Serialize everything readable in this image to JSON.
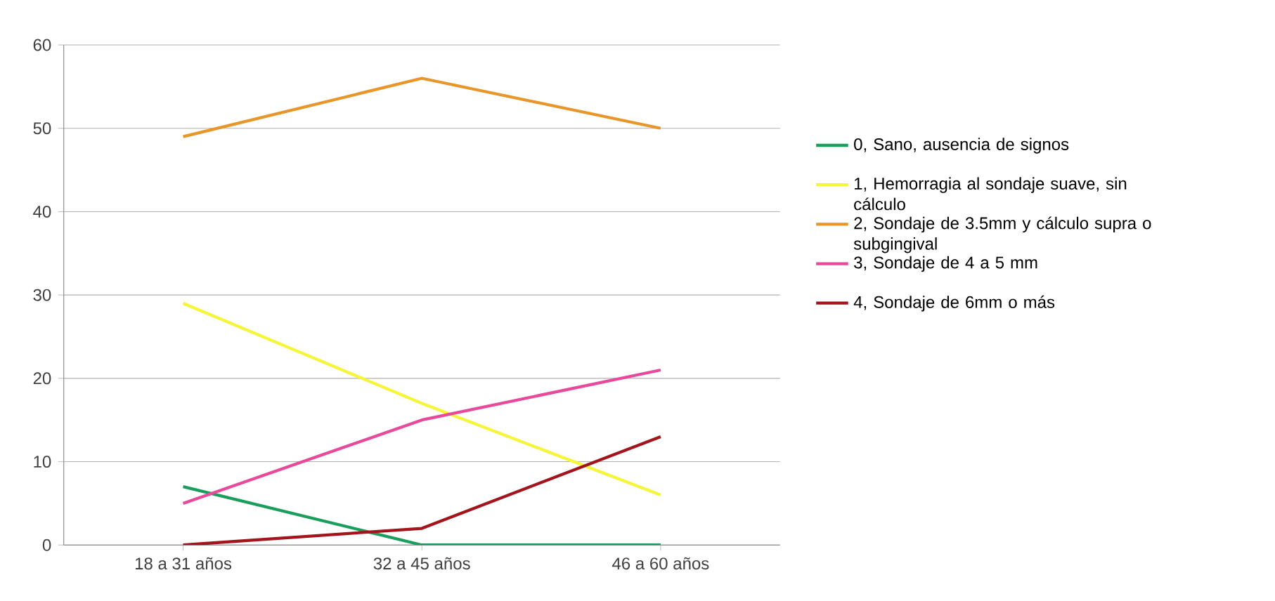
{
  "chart_data": {
    "type": "line",
    "categories": [
      "18 a 31 años",
      "32 a 45 años",
      "46 a 60 años"
    ],
    "series": [
      {
        "name": "0, Sano, ausencia de signos",
        "color": "#1a9e5c",
        "values": [
          7,
          0,
          0
        ]
      },
      {
        "name": "1, Hemorragia al sondaje suave, sin cálculo",
        "color": "#f5f53a",
        "values": [
          29,
          17,
          6
        ]
      },
      {
        "name": "2, Sondaje de 3.5mm y cálculo supra o subgingival",
        "color": "#e8962a",
        "values": [
          49,
          56,
          50
        ]
      },
      {
        "name": "3, Sondaje de 4 a 5 mm",
        "color": "#e8499a",
        "values": [
          5,
          15,
          21
        ]
      },
      {
        "name": "4, Sondaje de 6mm o más",
        "color": "#a3141c",
        "values": [
          0,
          2,
          13
        ]
      }
    ],
    "ylim": [
      0,
      60
    ],
    "yticks": [
      0,
      10,
      20,
      30,
      40,
      50,
      60
    ],
    "grid": "y",
    "legend": "right",
    "marker": "none",
    "line_style": "solid"
  }
}
